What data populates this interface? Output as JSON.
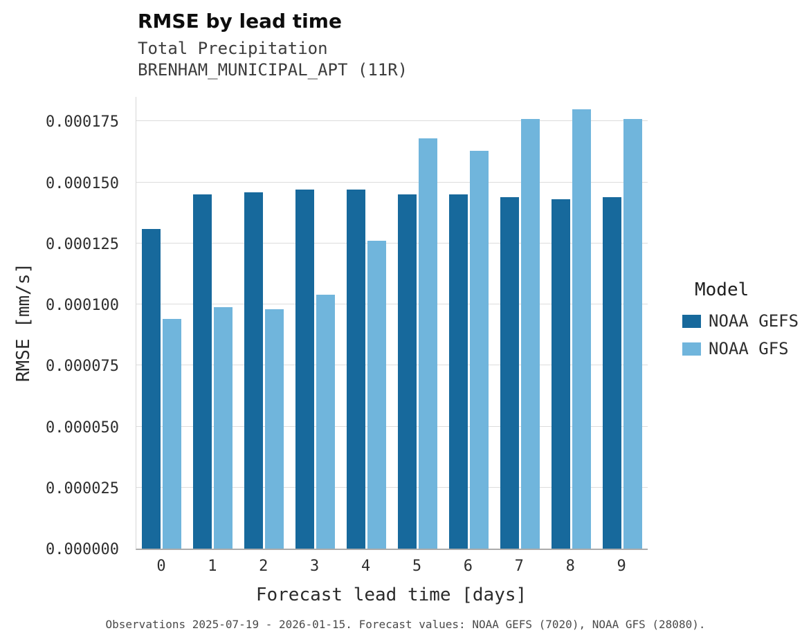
{
  "header": {
    "title": "RMSE by lead time",
    "subtitle_line1": "Total Precipitation",
    "subtitle_line2": "BRENHAM_MUNICIPAL_APT (11R)"
  },
  "chart_data": {
    "type": "bar",
    "title": "RMSE by lead time",
    "subtitle": "Total Precipitation BRENHAM_MUNICIPAL_APT (11R)",
    "xlabel": "Forecast lead time [days]",
    "ylabel": "RMSE [mm/s]",
    "categories": [
      "0",
      "1",
      "2",
      "3",
      "4",
      "5",
      "6",
      "7",
      "8",
      "9"
    ],
    "series": [
      {
        "name": "NOAA GEFS",
        "color": "#17699c",
        "values": [
          0.000131,
          0.000145,
          0.000146,
          0.000147,
          0.000147,
          0.000145,
          0.000145,
          0.000144,
          0.000143,
          0.000144
        ]
      },
      {
        "name": "NOAA GFS",
        "color": "#70b5dc",
        "values": [
          9.4e-05,
          9.9e-05,
          9.8e-05,
          0.000104,
          0.000126,
          0.000168,
          0.000163,
          0.000176,
          0.00018,
          0.000176
        ]
      }
    ],
    "ylim": [
      0,
      0.000185
    ],
    "yticks": [
      {
        "value": 0.0,
        "label": "0.000000"
      },
      {
        "value": 2.5e-05,
        "label": "0.000025"
      },
      {
        "value": 5e-05,
        "label": "0.000050"
      },
      {
        "value": 7.5e-05,
        "label": "0.000075"
      },
      {
        "value": 0.0001,
        "label": "0.000100"
      },
      {
        "value": 0.000125,
        "label": "0.000125"
      },
      {
        "value": 0.00015,
        "label": "0.000150"
      },
      {
        "value": 0.000175,
        "label": "0.000175"
      }
    ],
    "grid": true,
    "legend_title": "Model",
    "legend_position": "right"
  },
  "caption": "Observations 2025-07-19 - 2026-01-15. Forecast values: NOAA GEFS (7020), NOAA GFS (28080)."
}
